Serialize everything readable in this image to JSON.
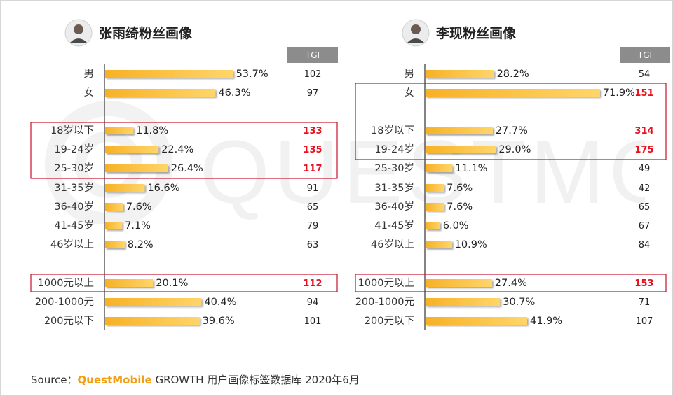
{
  "colors": {
    "bar_start": "#f7b125",
    "bar_end": "#ffd56a",
    "highlight": "#e8101e",
    "tgi_header_bg": "#8c8c8c",
    "box_border": "#c8102e",
    "brand": "#f29d12"
  },
  "source": {
    "prefix": "Source：",
    "brand": "QuestMobile",
    "rest": " GROWTH 用户画像标签数据库 2020年6月"
  },
  "watermark": {
    "text": "QUESTMOBILE",
    "icon": "questmobile-logo-icon"
  },
  "tgi_header": "TGI",
  "chart_data": [
    {
      "type": "bar",
      "title": "张雨绮粉丝画像",
      "avatar": "person-avatar-icon",
      "categories": [
        "男",
        "女",
        "18岁以下",
        "19-24岁",
        "25-30岁",
        "31-35岁",
        "36-40岁",
        "41-45岁",
        "46岁以上",
        "1000元以上",
        "200-1000元",
        "200元以下"
      ],
      "pct_labels": [
        "53.7%",
        "46.3%",
        "11.8%",
        "22.4%",
        "26.4%",
        "16.6%",
        "7.6%",
        "7.1%",
        "8.2%",
        "20.1%",
        "40.4%",
        "39.6%"
      ],
      "values": [
        53.7,
        46.3,
        11.8,
        22.4,
        26.4,
        16.6,
        7.6,
        7.1,
        8.2,
        20.1,
        40.4,
        39.6
      ],
      "tgi": [
        102,
        97,
        133,
        135,
        117,
        91,
        65,
        79,
        63,
        112,
        94,
        101
      ],
      "tgi_highlight": [
        false,
        false,
        true,
        true,
        true,
        false,
        false,
        false,
        false,
        true,
        false,
        false
      ],
      "highlight_boxes": [
        [
          2,
          4
        ],
        [
          9,
          9
        ]
      ]
    },
    {
      "type": "bar",
      "title": "李现粉丝画像",
      "avatar": "person-avatar-icon",
      "categories": [
        "男",
        "女",
        "18岁以下",
        "19-24岁",
        "25-30岁",
        "31-35岁",
        "36-40岁",
        "41-45岁",
        "46岁以上",
        "1000元以上",
        "200-1000元",
        "200元以下"
      ],
      "pct_labels": [
        "28.2%",
        "71.9%",
        "27.7%",
        "29.0%",
        "11.1%",
        "7.6%",
        "7.6%",
        "6.0%",
        "10.9%",
        "27.4%",
        "30.7%",
        "41.9%"
      ],
      "values": [
        28.2,
        71.9,
        27.7,
        29.0,
        11.1,
        7.6,
        7.6,
        6.0,
        10.9,
        27.4,
        30.7,
        41.9
      ],
      "tgi": [
        54,
        151,
        314,
        175,
        49,
        42,
        65,
        67,
        84,
        153,
        71,
        107
      ],
      "tgi_highlight": [
        false,
        true,
        true,
        true,
        false,
        false,
        false,
        false,
        false,
        true,
        false,
        false
      ],
      "highlight_boxes": [
        [
          1,
          3
        ],
        [
          9,
          9
        ]
      ]
    }
  ]
}
